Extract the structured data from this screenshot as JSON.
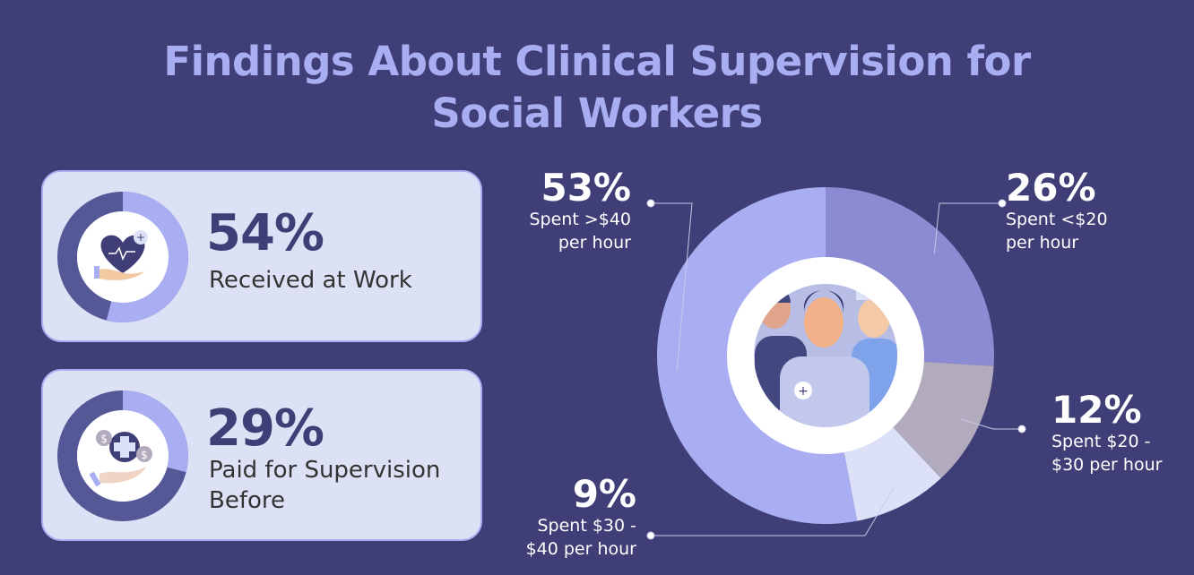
{
  "title_line1": "Findings About Clinical Supervision for",
  "title_line2": "Social Workers",
  "cards": [
    {
      "value": "54%",
      "fraction": 0.54,
      "label": "Received at Work",
      "icon": "heart-in-hand-icon"
    },
    {
      "value": "29%",
      "fraction": 0.29,
      "label_line1": "Paid for Supervision",
      "label_line2": "Before",
      "icon": "coins-medical-hand-icon"
    }
  ],
  "colors": {
    "background": "#3f3e76",
    "title": "#a9aef3",
    "card_bg": "#dde1f5",
    "dark": "#545896",
    "light": "#a9aef3"
  },
  "chart_data": {
    "type": "pie",
    "style": "donut",
    "center_icon": "medical-team-icon",
    "slices": [
      {
        "value": 26,
        "label": "26%",
        "text_line1": "Spent <$20",
        "text_line2": "per hour",
        "color": "#8a8bd2"
      },
      {
        "value": 12,
        "label": "12%",
        "text_line1": "Spent $20 -",
        "text_line2": "$30 per hour",
        "color": "#b2aabd"
      },
      {
        "value": 9,
        "label": "9%",
        "text_line1": "Spent $30 -",
        "text_line2": "$40 per hour",
        "color": "#dde1f7"
      },
      {
        "value": 53,
        "label": "53%",
        "text_line1": "Spent >$40",
        "text_line2": "per hour",
        "color": "#a9aef3"
      }
    ]
  }
}
